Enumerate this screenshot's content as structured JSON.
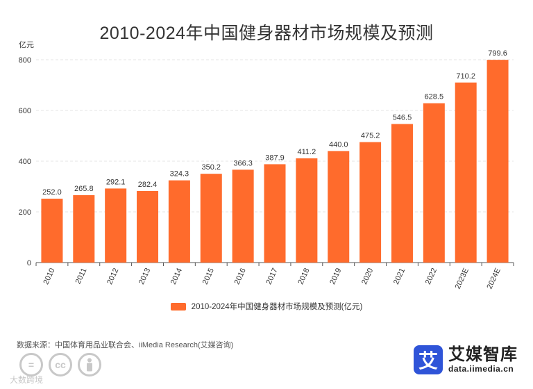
{
  "chart_data": {
    "type": "bar",
    "title": "2010-2024年中国健身器材市场规模及预测",
    "unit_label": "亿元",
    "categories": [
      "2010",
      "2011",
      "2012",
      "2013",
      "2014",
      "2015",
      "2016",
      "2017",
      "2018",
      "2019",
      "2020",
      "2021",
      "2022",
      "2023E",
      "2024E"
    ],
    "series": [
      {
        "name": "2010-2024年中国健身器材市场规模及预测(亿元)",
        "values": [
          252.0,
          265.8,
          292.1,
          282.4,
          324.3,
          350.2,
          366.3,
          387.9,
          411.2,
          440.0,
          475.2,
          546.5,
          628.5,
          710.2,
          799.6
        ],
        "color": "#ff6b2c"
      }
    ],
    "value_labels": [
      "252.0",
      "265.8",
      "292.1",
      "282.4",
      "324.3",
      "350.2",
      "366.3",
      "387.9",
      "411.2",
      "440.0",
      "475.2",
      "546.5",
      "628.5",
      "710.2",
      "799.6"
    ],
    "yticks": [
      "0",
      "200",
      "400",
      "600",
      "800"
    ],
    "ylim": [
      0,
      800
    ],
    "grid": true,
    "legend_position": "bottom"
  },
  "source": "数据来源：中国体育用品业联合会、iiMedia Research(艾媒咨询)",
  "watermark": "大数跨境",
  "brand": {
    "name": "艾媒智库",
    "url": "data.iimedia.cn",
    "logo_char": "艾",
    "color": "#2f54d8"
  }
}
